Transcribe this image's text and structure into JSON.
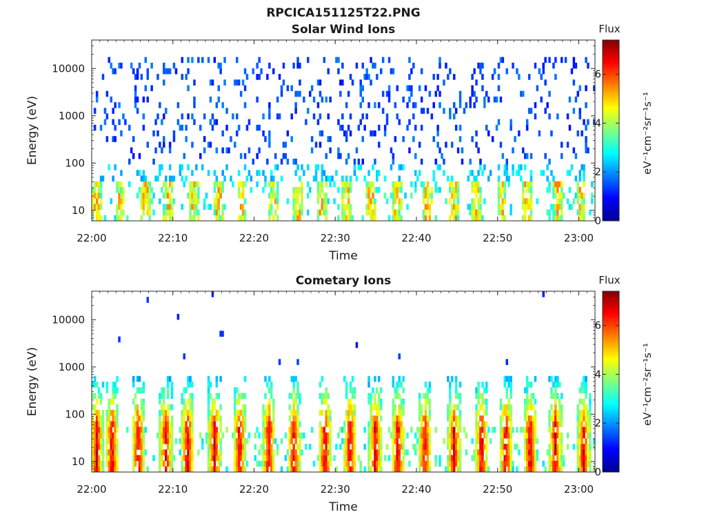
{
  "figure": {
    "title": "RPCICA151125T22.PNG"
  },
  "colormap": [
    "#00008f",
    "#0000ff",
    "#0080ff",
    "#00ffff",
    "#80ff80",
    "#ffff00",
    "#ff8000",
    "#ff0000",
    "#800000"
  ],
  "chart_data": [
    {
      "type": "heatmap",
      "title": "Solar Wind Ions",
      "xlabel": "Time",
      "ylabel": "Energy (eV)",
      "yscale": "log",
      "xlim": [
        "22:00",
        "23:02"
      ],
      "ylim": [
        6,
        40000
      ],
      "x_ticks": [
        "22:00",
        "22:10",
        "22:20",
        "22:30",
        "22:40",
        "22:50",
        "23:00"
      ],
      "y_ticks": [
        "10",
        "100",
        "1000",
        "10000"
      ],
      "colorbar": {
        "title": "Flux",
        "label": "eV⁻¹cm⁻²sr⁻¹s⁻¹",
        "range": [
          0,
          7.4
        ],
        "ticks": [
          "0",
          "2",
          "4",
          "6"
        ]
      },
      "pattern": "scattered",
      "burst_minutes": [
        0.5,
        3.4,
        6.5,
        9.3,
        12.4,
        15.5,
        18.4,
        22.3,
        25.3,
        28.2,
        31.3,
        34.3,
        37.5,
        41.2,
        44.5,
        47.3,
        50.4,
        53.5,
        57.3,
        60.1
      ]
    },
    {
      "type": "heatmap",
      "title": "Cometary Ions",
      "xlabel": "Time",
      "ylabel": "Energy (eV)",
      "yscale": "log",
      "xlim": [
        "22:00",
        "23:02"
      ],
      "ylim": [
        6,
        40000
      ],
      "x_ticks": [
        "22:00",
        "22:10",
        "22:20",
        "22:30",
        "22:40",
        "22:50",
        "23:00"
      ],
      "y_ticks": [
        "10",
        "100",
        "1000",
        "10000"
      ],
      "colorbar": {
        "title": "Flux",
        "label": "eV⁻¹cm⁻²sr⁻¹s⁻¹",
        "range": [
          0,
          7.4
        ],
        "ticks": [
          "0",
          "2",
          "4",
          "6"
        ]
      },
      "pattern": "bursts",
      "burst_minutes": [
        0.5,
        2.4,
        5.6,
        9.0,
        11.7,
        15.0,
        18.1,
        21.7,
        24.8,
        28.6,
        31.7,
        34.8,
        37.6,
        40.9,
        44.5,
        47.9,
        50.9,
        53.9,
        57.0,
        60.5
      ]
    }
  ]
}
